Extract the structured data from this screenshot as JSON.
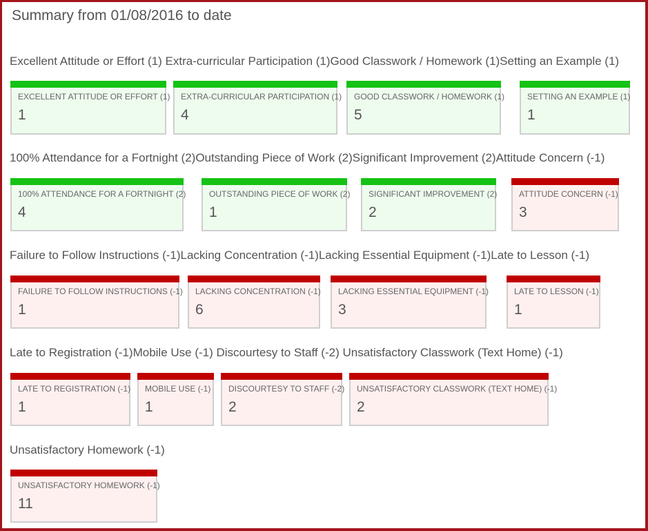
{
  "title": "Summary from 01/08/2016 to date",
  "colors": {
    "positive_bar": "#15c215",
    "negative_bar": "#c00000",
    "positive_bg": "#eefcee",
    "negative_bg": "#fff0f0",
    "frame": "#a3151b"
  },
  "rows": [
    {
      "label": "Excellent Attitude or Effort (1)  Extra-curricular Participation (1)Good Classwork / Homework (1)Setting an Example (1)",
      "cards": [
        {
          "type": "positive",
          "label": "EXCELLENT ATTITUDE OR EFFORT (1)",
          "value": "1"
        },
        {
          "type": "positive",
          "label": "EXTRA-CURRICULAR PARTICIPATION (1)",
          "value": "4"
        },
        {
          "type": "positive",
          "label": "GOOD CLASSWORK / HOMEWORK (1)",
          "value": "5"
        },
        {
          "type": "positive",
          "label": "SETTING AN EXAMPLE (1)",
          "value": "1"
        }
      ]
    },
    {
      "label": "100% Attendance for a Fortnight (2)Outstanding Piece of Work (2)Significant Improvement (2)Attitude Concern (-1)",
      "cards": [
        {
          "type": "positive",
          "label": "100% ATTENDANCE FOR A FORTNIGHT (2)",
          "value": "4"
        },
        {
          "type": "positive",
          "label": "OUTSTANDING PIECE OF WORK (2)",
          "value": "1"
        },
        {
          "type": "positive",
          "label": "SIGNIFICANT IMPROVEMENT (2)",
          "value": "2"
        },
        {
          "type": "negative",
          "label": "ATTITUDE CONCERN (-1)",
          "value": "3"
        }
      ]
    },
    {
      "label": "Failure to Follow Instructions (-1)Lacking Concentration (-1)Lacking Essential Equipment (-1)Late to Lesson (-1)",
      "cards": [
        {
          "type": "negative",
          "label": "FAILURE TO FOLLOW INSTRUCTIONS (-1)",
          "value": "1"
        },
        {
          "type": "negative",
          "label": "LACKING CONCENTRATION (-1)",
          "value": "6"
        },
        {
          "type": "negative",
          "label": "LACKING ESSENTIAL EQUIPMENT (-1)",
          "value": "3"
        },
        {
          "type": "negative",
          "label": "LATE TO LESSON (-1)",
          "value": "1"
        }
      ]
    },
    {
      "label": "Late to Registration (-1)Mobile Use (-1)  Discourtesy to Staff (-2)  Unsatisfactory Classwork (Text Home) (-1)",
      "cards": [
        {
          "type": "negative",
          "label": "LATE TO REGISTRATION (-1)",
          "value": "1"
        },
        {
          "type": "negative",
          "label": "MOBILE USE (-1)",
          "value": "1"
        },
        {
          "type": "negative",
          "label": "DISCOURTESY TO STAFF (-2)",
          "value": "2"
        },
        {
          "type": "negative",
          "label": "UNSATISFACTORY CLASSWORK (TEXT HOME) (-1)",
          "value": "2"
        }
      ]
    },
    {
      "label": "Unsatisfactory Homework (-1)",
      "cards": [
        {
          "type": "negative",
          "label": "UNSATISFACTORY HOMEWORK (-1)",
          "value": "11"
        }
      ]
    }
  ]
}
